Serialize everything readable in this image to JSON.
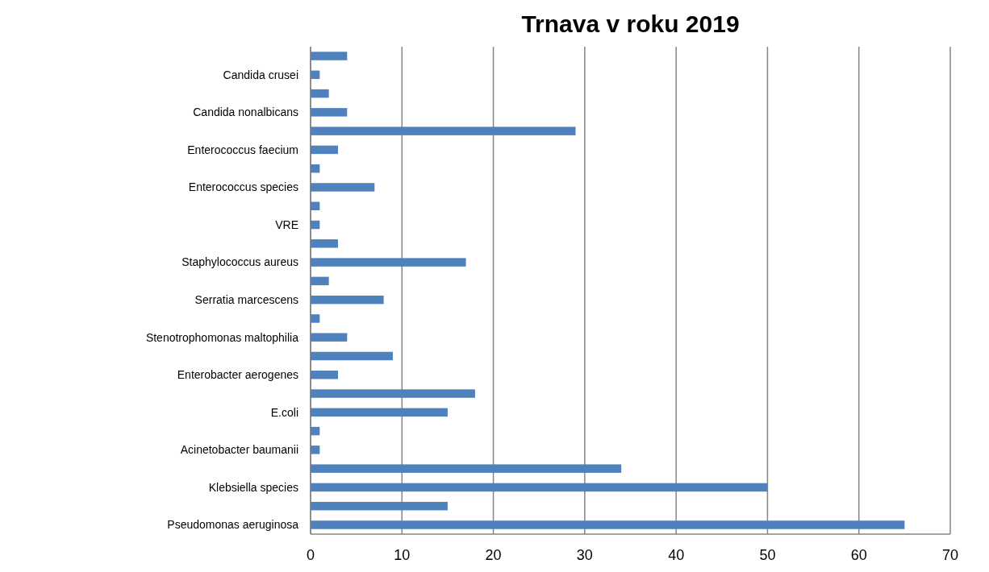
{
  "chart_data": {
    "type": "bar",
    "orientation": "horizontal",
    "title": "Trnava v roku 2019",
    "categories": [
      null,
      "Candida crusei",
      null,
      "Candida nonalbicans",
      null,
      "Enterococcus faecium",
      null,
      "Enterococcus species",
      null,
      "VRE",
      null,
      "Staphylococcus aureus",
      null,
      "Serratia marcescens",
      null,
      "Stenotrophomonas maltophilia",
      null,
      "Enterobacter aerogenes",
      null,
      "E.coli",
      null,
      "Acinetobacter baumanii",
      null,
      "Klebsiella species",
      null,
      "Pseudomonas aeruginosa"
    ],
    "values": [
      4,
      1,
      2,
      4,
      29,
      3,
      1,
      7,
      1,
      1,
      3,
      17,
      2,
      8,
      1,
      4,
      9,
      3,
      18,
      15,
      1,
      1,
      34,
      50,
      15,
      65
    ],
    "color": "#4f81bd",
    "xlim": [
      0,
      70
    ],
    "xticks": [
      0,
      10,
      20,
      30,
      40,
      50,
      60,
      70
    ],
    "grid": "x"
  }
}
